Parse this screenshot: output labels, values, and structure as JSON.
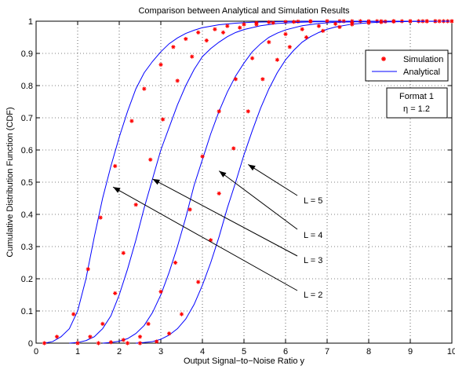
{
  "chart_data": {
    "type": "line",
    "title": "Comparison between Analytical and Simulation Results",
    "xlabel": "Output Signal−to−Noise Ratio y",
    "ylabel": "Cumulative Distribution Function (CDF)",
    "xlim": [
      0,
      10
    ],
    "ylim": [
      0,
      1
    ],
    "grid": true,
    "x_ticks": [
      "0",
      "1",
      "2",
      "3",
      "4",
      "5",
      "6",
      "7",
      "8",
      "9",
      "10"
    ],
    "y_ticks": [
      "0",
      "0.1",
      "0.2",
      "0.3",
      "0.4",
      "0.5",
      "0.6",
      "0.7",
      "0.8",
      "0.9",
      "1"
    ],
    "legend": {
      "position": "top-right",
      "entries": [
        {
          "label": "Simulation",
          "marker": "*",
          "color": "#ff0000"
        },
        {
          "label": "Analytical",
          "line": "solid",
          "color": "#0000ff"
        }
      ]
    },
    "info_box": {
      "line1": "Format 1",
      "line2": "η = 1.2"
    },
    "series": [
      {
        "curve": "L = 2",
        "analytical_x": [
          0.2,
          0.4,
          0.6,
          0.8,
          1.0,
          1.2,
          1.4,
          1.6,
          1.8,
          2.0,
          2.2,
          2.4,
          2.6,
          2.8,
          3.0,
          3.2,
          3.4,
          3.6,
          3.8,
          4.0,
          4.4,
          4.8,
          5.2,
          5.6,
          6.0,
          7.0,
          8.0,
          9.0,
          10.0
        ],
        "analytical_y": [
          0.0,
          0.005,
          0.02,
          0.045,
          0.1,
          0.2,
          0.33,
          0.45,
          0.55,
          0.64,
          0.72,
          0.79,
          0.84,
          0.875,
          0.905,
          0.93,
          0.948,
          0.962,
          0.972,
          0.98,
          0.989,
          0.994,
          0.997,
          0.998,
          0.999,
          1.0,
          1.0,
          1.0,
          1.0
        ],
        "simulation_x": [
          0.2,
          0.5,
          0.9,
          1.25,
          1.55,
          1.9,
          2.3,
          2.6,
          3.0,
          3.3,
          3.6,
          3.9,
          4.3,
          4.6,
          5.0,
          5.3,
          5.6,
          6.0,
          6.3,
          6.6,
          7.0,
          7.3,
          7.6,
          8.0,
          8.3,
          8.6,
          9.0,
          9.3,
          9.6,
          9.9
        ],
        "simulation_y": [
          0.0,
          0.02,
          0.09,
          0.23,
          0.39,
          0.55,
          0.69,
          0.79,
          0.865,
          0.92,
          0.945,
          0.965,
          0.975,
          0.985,
          0.99,
          0.995,
          0.997,
          0.998,
          0.999,
          1.0,
          1.0,
          1.0,
          1.0,
          1.0,
          1.0,
          1.0,
          1.0,
          1.0,
          1.0,
          1.0
        ]
      },
      {
        "curve": "L = 3",
        "analytical_x": [
          0.8,
          1.0,
          1.2,
          1.4,
          1.6,
          1.8,
          2.0,
          2.2,
          2.4,
          2.6,
          2.8,
          3.0,
          3.2,
          3.4,
          3.6,
          3.8,
          4.0,
          4.2,
          4.4,
          4.6,
          4.8,
          5.0,
          5.4,
          5.8,
          6.2,
          6.6,
          7.0,
          8.0,
          9.0,
          10.0
        ],
        "analytical_y": [
          0.0,
          0.002,
          0.008,
          0.02,
          0.045,
          0.085,
          0.15,
          0.23,
          0.32,
          0.42,
          0.51,
          0.6,
          0.67,
          0.74,
          0.8,
          0.85,
          0.89,
          0.915,
          0.935,
          0.952,
          0.965,
          0.974,
          0.986,
          0.993,
          0.996,
          0.998,
          0.999,
          1.0,
          1.0,
          1.0
        ],
        "simulation_x": [
          1.0,
          1.3,
          1.6,
          1.9,
          2.1,
          2.4,
          2.75,
          3.05,
          3.4,
          3.75,
          4.1,
          4.5,
          4.9,
          5.3,
          5.7,
          6.2,
          6.6,
          7.0,
          7.4,
          7.8,
          8.2,
          8.6,
          9.0,
          9.4,
          9.8
        ],
        "simulation_y": [
          0.0,
          0.02,
          0.06,
          0.155,
          0.28,
          0.43,
          0.57,
          0.695,
          0.815,
          0.89,
          0.94,
          0.965,
          0.98,
          0.99,
          0.995,
          0.998,
          0.999,
          1.0,
          1.0,
          1.0,
          1.0,
          1.0,
          1.0,
          1.0,
          1.0
        ]
      },
      {
        "curve": "L = 4",
        "analytical_x": [
          1.6,
          1.8,
          2.0,
          2.2,
          2.4,
          2.6,
          2.8,
          3.0,
          3.2,
          3.4,
          3.6,
          3.8,
          4.0,
          4.2,
          4.4,
          4.6,
          4.8,
          5.0,
          5.2,
          5.4,
          5.6,
          5.8,
          6.0,
          6.4,
          6.8,
          7.2,
          7.6,
          8.0,
          9.0,
          10.0
        ],
        "analytical_y": [
          0.0,
          0.002,
          0.006,
          0.014,
          0.03,
          0.055,
          0.095,
          0.15,
          0.22,
          0.3,
          0.39,
          0.49,
          0.57,
          0.65,
          0.72,
          0.78,
          0.83,
          0.87,
          0.905,
          0.93,
          0.95,
          0.963,
          0.973,
          0.986,
          0.993,
          0.997,
          0.998,
          0.999,
          1.0,
          1.0
        ],
        "simulation_x": [
          1.5,
          1.8,
          2.1,
          2.5,
          2.7,
          3.0,
          3.35,
          3.7,
          4.0,
          4.4,
          4.8,
          5.2,
          5.6,
          6.0,
          6.4,
          6.8,
          7.2,
          7.6,
          8.0,
          8.4,
          8.8,
          9.2,
          9.6,
          10.0
        ],
        "simulation_y": [
          0.0,
          0.003,
          0.01,
          0.02,
          0.06,
          0.16,
          0.25,
          0.415,
          0.58,
          0.72,
          0.82,
          0.885,
          0.935,
          0.96,
          0.975,
          0.985,
          0.992,
          0.996,
          0.998,
          0.999,
          1.0,
          1.0,
          1.0,
          1.0
        ]
      },
      {
        "curve": "L = 5",
        "analytical_x": [
          2.4,
          2.6,
          2.8,
          3.0,
          3.2,
          3.4,
          3.6,
          3.8,
          4.0,
          4.2,
          4.4,
          4.6,
          4.8,
          5.0,
          5.2,
          5.4,
          5.6,
          5.8,
          6.0,
          6.2,
          6.4,
          6.6,
          6.8,
          7.0,
          7.2,
          7.6,
          8.0,
          8.4,
          9.0,
          10.0
        ],
        "analytical_y": [
          0.0,
          0.002,
          0.005,
          0.012,
          0.025,
          0.045,
          0.075,
          0.12,
          0.18,
          0.25,
          0.33,
          0.42,
          0.5,
          0.585,
          0.66,
          0.73,
          0.79,
          0.84,
          0.88,
          0.91,
          0.935,
          0.952,
          0.965,
          0.975,
          0.982,
          0.991,
          0.995,
          0.998,
          0.999,
          1.0
        ],
        "simulation_x": [
          2.2,
          2.5,
          2.9,
          3.2,
          3.5,
          3.9,
          4.2,
          4.4,
          4.75,
          5.1,
          5.45,
          5.8,
          6.1,
          6.5,
          6.9,
          7.3,
          7.6,
          8.0,
          8.3,
          8.6,
          9.0,
          9.4,
          9.7,
          10.0
        ],
        "simulation_y": [
          0.0,
          0.0,
          0.005,
          0.03,
          0.09,
          0.19,
          0.32,
          0.465,
          0.605,
          0.72,
          0.82,
          0.88,
          0.92,
          0.95,
          0.97,
          0.982,
          0.99,
          0.995,
          0.997,
          0.999,
          1.0,
          1.0,
          1.0,
          1.0
        ]
      }
    ],
    "annotations": [
      {
        "text": "L = 5",
        "arrow_to": [
          5.1,
          0.555
        ]
      },
      {
        "text": "L = 4",
        "arrow_to": [
          4.4,
          0.535
        ]
      },
      {
        "text": "L = 3",
        "arrow_to": [
          2.8,
          0.51
        ]
      },
      {
        "text": "L = 2",
        "arrow_to": [
          1.85,
          0.485
        ]
      }
    ]
  }
}
